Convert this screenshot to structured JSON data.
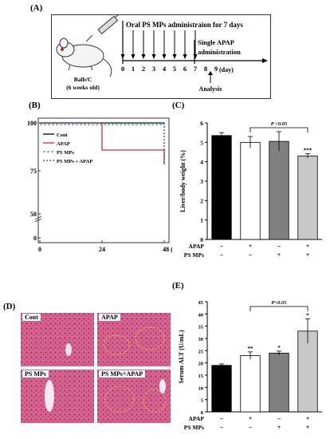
{
  "panel_A": {
    "label": "(A)",
    "title": "Oral PS MPs administraion for 7 days",
    "single_line1": "Single APAP",
    "single_line2": "administration",
    "mouse_line1": "Balb/C",
    "mouse_line2": "(6 weeks old)",
    "days": [
      "0",
      "1",
      "2",
      "3",
      "4",
      "5",
      "6",
      "7",
      "8",
      "9"
    ],
    "day_unit": "(day)",
    "analysis": "Analysis"
  },
  "panel_B": {
    "label": "(B)",
    "colors": {
      "Cont": "#000000",
      "APAP": "#d42a3a",
      "PS MPs": "#2bb34a",
      "PS MPs + APAP": "#2c3ea8"
    },
    "chart_data": {
      "type": "line",
      "x_ticks": [
        "0",
        "24",
        "48 (h)"
      ],
      "y_ticks": [
        "100",
        "75",
        "50",
        "0"
      ],
      "series": [
        {
          "name": "Cont",
          "x": [
            0,
            24,
            48
          ],
          "y": [
            100,
            100,
            100
          ]
        },
        {
          "name": "APAP",
          "x": [
            0,
            24,
            24,
            48,
            48
          ],
          "y": [
            100,
            100,
            91,
            91,
            84
          ]
        },
        {
          "name": "PS MPs",
          "x": [
            0,
            48
          ],
          "y": [
            99,
            99
          ]
        },
        {
          "name": "PS MPs + APAP",
          "x": [
            0,
            48,
            48
          ],
          "y": [
            100,
            100,
            84
          ]
        }
      ],
      "legend": "top-left"
    }
  },
  "panel_C": {
    "label": "(C)",
    "chart_data": {
      "type": "bar",
      "categories": [
        "Cont",
        "APAP",
        "PS MPs",
        "PS MPs+APAP"
      ],
      "values": [
        5.35,
        5.0,
        5.05,
        4.3
      ],
      "errors": [
        0.15,
        0.3,
        0.5,
        0.12
      ],
      "ylabel": "Liver/body weight (%)",
      "ylim": [
        0,
        6
      ],
      "y_ticks": [
        "0",
        "1",
        "2",
        "3",
        "4",
        "5",
        "6"
      ],
      "significance": [
        "",
        "",
        "",
        "***"
      ],
      "bracket_label": "P <0.05",
      "row1_label": "APAP",
      "row1_signs": [
        "–",
        "+",
        "–",
        "+"
      ],
      "row2_label": "PS MPs",
      "row2_signs": [
        "–",
        "–",
        "+",
        "+"
      ]
    },
    "bar_colors": [
      "#000000",
      "#ffffff",
      "#808080",
      "#c8c8c8"
    ]
  },
  "panel_D": {
    "label": "(D)",
    "images": [
      "Cont",
      "APAP",
      "PS MPs",
      "PS MPs+APAP"
    ]
  },
  "panel_E": {
    "label": "(E)",
    "chart_data": {
      "type": "bar",
      "categories": [
        "Cont",
        "APAP",
        "PS MPs",
        "PS MPs+APAP"
      ],
      "values": [
        19,
        23,
        24,
        33
      ],
      "errors": [
        0.6,
        1.5,
        0.8,
        5
      ],
      "ylabel": "Serum ALT (U/mL)",
      "ylim": [
        0,
        45
      ],
      "y_ticks": [
        "0",
        "5",
        "10",
        "15",
        "20",
        "25",
        "30",
        "35",
        "40",
        "45"
      ],
      "significance": [
        "",
        "**",
        "*",
        "*"
      ],
      "bracket_label": "P<0.05",
      "row1_label": "APAP",
      "row1_signs": [
        "–",
        "+",
        "–",
        "+"
      ],
      "row2_label": "PS MPs",
      "row2_signs": [
        "–",
        "–",
        "+",
        "+"
      ]
    },
    "bar_colors": [
      "#000000",
      "#ffffff",
      "#808080",
      "#c8c8c8"
    ]
  }
}
